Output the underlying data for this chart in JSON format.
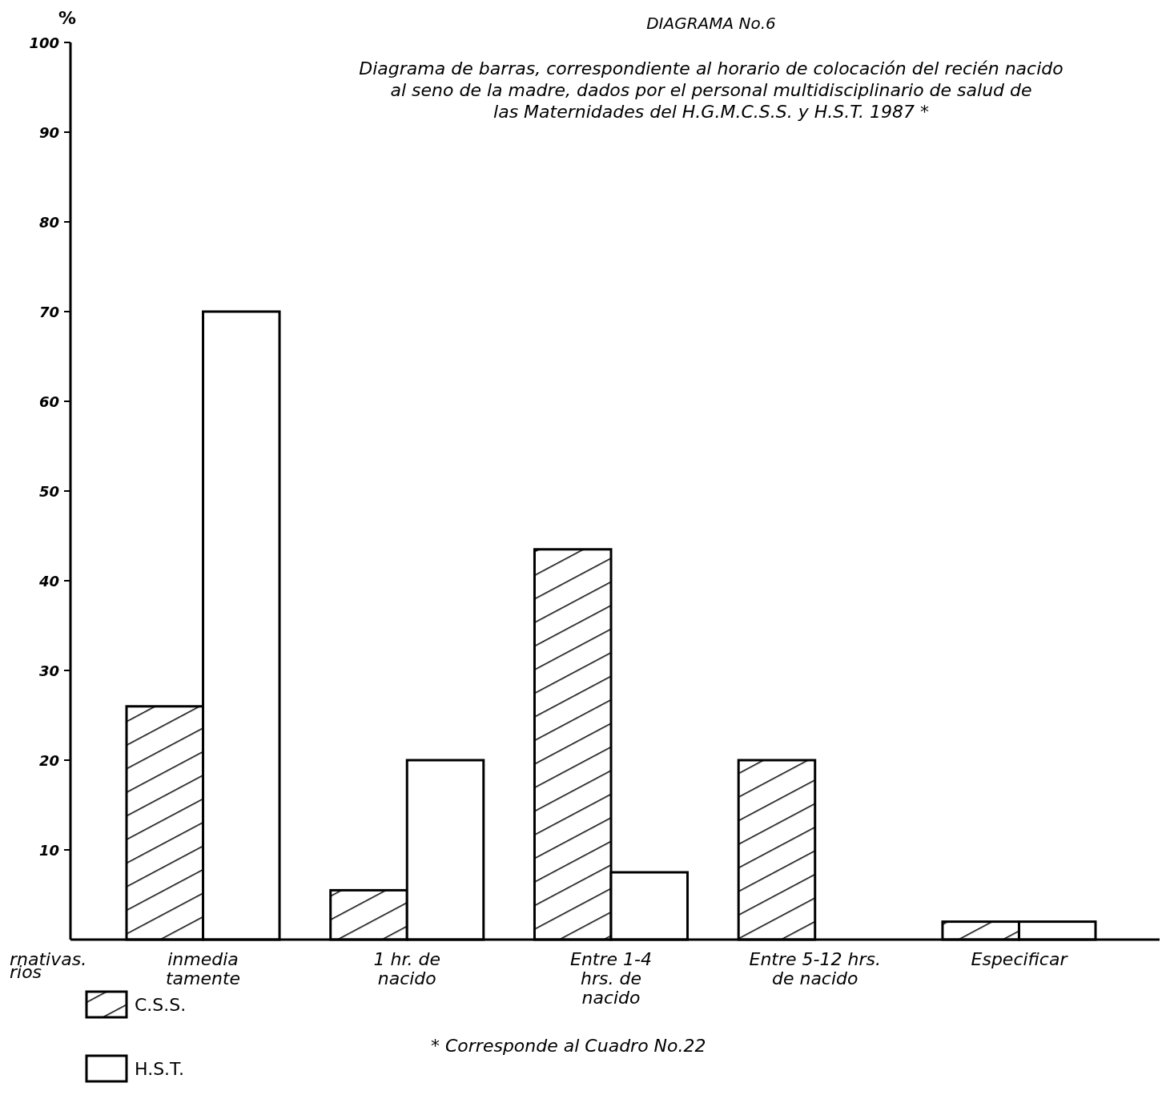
{
  "chart_data": {
    "type": "bar",
    "title": "DIAGRAMA No.6",
    "subtitle": "Diagrama de barras, correspondiente al horario de colocación del recién nacido\nal seno de la madre, dados por el personal multidisciplinario de salud de\nlas Maternidades del H.G.M.C.S.S. y H.S.T. 1987 *",
    "ylabel": "%",
    "categories": [
      "inmedia\ntamente",
      "1 hr. de\nnacido",
      "Entre 1-4\nhrs. de\nnacido",
      "Entre 5-12 hrs.\nde nacido",
      "Especificar"
    ],
    "series": [
      {
        "name": "C.S.S.",
        "color": "#000000",
        "values": [
          26,
          5.5,
          43.5,
          20,
          2
        ]
      },
      {
        "name": "H.S.T.",
        "color": "#ffffff",
        "values": [
          70,
          20,
          7.5,
          0,
          2
        ]
      }
    ],
    "ylim": [
      0,
      100
    ],
    "yticks": [
      10,
      20,
      30,
      40,
      50,
      60,
      70,
      80,
      90,
      100
    ],
    "grid": false,
    "legend": "bottom left",
    "annotations": [
      "rnativas.\nrios",
      "* Corresponde al Cuadro No.22"
    ]
  }
}
